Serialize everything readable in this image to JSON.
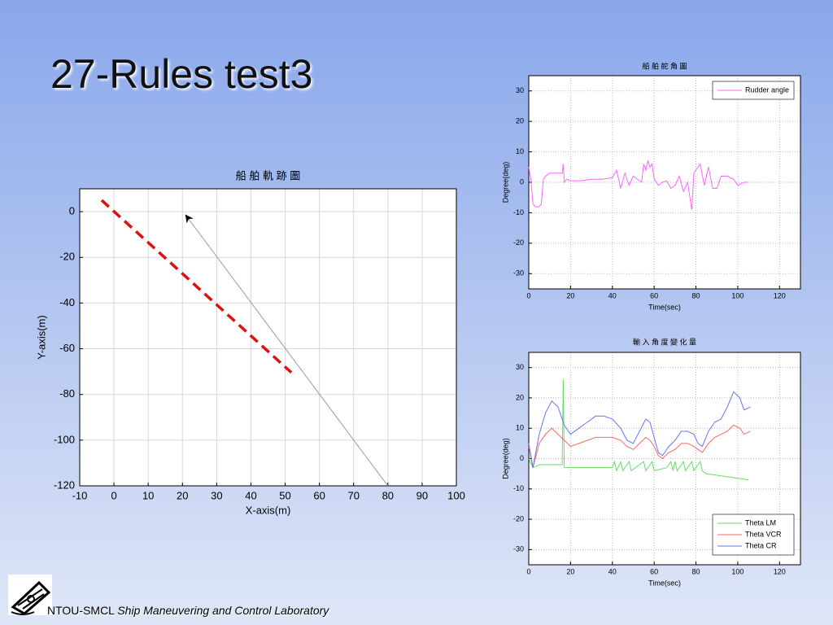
{
  "slide": {
    "title": "27-Rules test3",
    "footer": {
      "org": "NTOU-SMCL",
      "lab": "Ship Maneuvering and Control Laboratory"
    }
  },
  "chart_data": [
    {
      "type": "line",
      "title": "船 舶 軌 跡 圖",
      "x_label": "X-axis(m)",
      "y_label": "Y-axis(m)",
      "xlim": [
        -10,
        100
      ],
      "ylim": [
        -120,
        10
      ],
      "xticks": [
        -10,
        0,
        10,
        20,
        30,
        40,
        50,
        60,
        70,
        80,
        90,
        100
      ],
      "yticks": [
        -120,
        -100,
        -80,
        -60,
        -40,
        -20,
        0
      ],
      "grid": true,
      "series": [
        {
          "color": "#e01010",
          "style": "dashed",
          "x": [
            -3.6,
            51.8
          ],
          "values": [
            5,
            -70.4
          ]
        },
        {
          "color": "#999999",
          "style": "arrow",
          "x": [
            80,
            21.1
          ],
          "values": [
            -120,
            -1.8
          ]
        }
      ]
    },
    {
      "type": "line",
      "title": "船 舶 舵 角 圖",
      "x_label": "Time(sec)",
      "y_label": "Degree(deg)",
      "xlim": [
        0,
        130
      ],
      "ylim": [
        -35,
        35
      ],
      "xticks": [
        0,
        20,
        40,
        60,
        80,
        100,
        120
      ],
      "yticks": [
        -30,
        -20,
        -10,
        0,
        10,
        20,
        30
      ],
      "grid": true,
      "legend": "upper right",
      "series": [
        {
          "name": "Rudder angle",
          "color": "#ff66ff",
          "x": [
            0,
            1,
            2,
            3,
            4,
            5,
            6,
            7,
            8,
            10,
            12,
            14,
            16,
            16.5,
            17,
            18,
            20,
            25,
            30,
            35,
            40,
            42,
            44,
            46,
            48,
            50,
            52,
            54,
            55,
            56,
            57,
            58,
            59,
            60,
            62,
            64,
            66,
            68,
            70,
            72,
            74,
            76,
            78,
            79,
            80,
            82,
            84,
            86,
            88,
            90,
            92,
            95,
            98,
            100,
            103,
            105
          ],
          "values": [
            5,
            1,
            -7,
            -8,
            -8,
            -8,
            -7,
            1,
            2,
            3,
            3,
            3,
            3,
            6,
            0,
            1,
            0.5,
            0.5,
            1,
            1,
            1.5,
            4,
            -2,
            3,
            -1,
            2,
            1,
            0,
            6,
            4,
            7,
            5,
            6,
            1,
            -1,
            0,
            0.5,
            -2,
            -1,
            2,
            -3,
            0,
            -9,
            3,
            4,
            6,
            -1,
            5,
            -2,
            -2,
            2,
            2,
            1,
            -1,
            0,
            0
          ]
        }
      ]
    },
    {
      "type": "line",
      "title": "輸 入 角 度 變 化 量",
      "x_label": "Time(sec)",
      "y_label": "Degree(deg)",
      "xlim": [
        0,
        130
      ],
      "ylim": [
        -35,
        35
      ],
      "xticks": [
        0,
        20,
        40,
        60,
        80,
        100,
        120
      ],
      "yticks": [
        -30,
        -20,
        -10,
        0,
        10,
        20,
        30
      ],
      "grid": true,
      "legend": "lower right",
      "series": [
        {
          "name": "Theta LM",
          "color": "#66dd66",
          "x": [
            0,
            2,
            5,
            16,
            16.5,
            17,
            40,
            41,
            42,
            44,
            45,
            48,
            49,
            55,
            56,
            59,
            60,
            66,
            68,
            69,
            70,
            71,
            74,
            75,
            78,
            79,
            82,
            83,
            85,
            95,
            105
          ],
          "values": [
            0,
            -3,
            -2,
            -2,
            26,
            -3,
            -3,
            -1,
            -4,
            -1,
            -4,
            -1,
            -4,
            -1,
            -4,
            -1,
            -4,
            -3,
            -1,
            -4,
            -1,
            -4,
            -1,
            -4,
            -1,
            -4,
            -1,
            -4,
            -5,
            -6,
            -7
          ]
        },
        {
          "name": "Theta VCR",
          "color": "#ff6666",
          "x": [
            0,
            2,
            5,
            8,
            11,
            14,
            17,
            20,
            24,
            28,
            32,
            36,
            40,
            44,
            47,
            50,
            53,
            56,
            58,
            60,
            62,
            64,
            67,
            70,
            73,
            76,
            79,
            81,
            83,
            86,
            89,
            92,
            95,
            98,
            101,
            103,
            106
          ],
          "values": [
            4,
            -3,
            5,
            8,
            10,
            8,
            6,
            4,
            5,
            6,
            7,
            7,
            7,
            6,
            4,
            3,
            5,
            7,
            6,
            4,
            1,
            0,
            2,
            3,
            5,
            5,
            4,
            3,
            2,
            5,
            7,
            8,
            9,
            11,
            10,
            8,
            9
          ]
        },
        {
          "name": "Theta CR",
          "color": "#6677ee",
          "x": [
            0,
            2,
            5,
            8,
            11,
            14,
            17,
            20,
            24,
            28,
            32,
            36,
            40,
            44,
            47,
            50,
            53,
            56,
            58,
            60,
            62,
            64,
            67,
            70,
            73,
            76,
            79,
            81,
            83,
            86,
            89,
            92,
            95,
            98,
            101,
            103,
            106
          ],
          "values": [
            5,
            -3,
            8,
            15,
            19,
            17,
            11,
            8,
            10,
            12,
            14,
            14,
            13,
            10,
            6,
            5,
            9,
            13,
            12,
            7,
            2,
            1,
            4,
            6,
            9,
            9,
            8,
            5,
            4,
            9,
            12,
            13,
            17,
            22,
            20,
            16,
            17
          ]
        }
      ]
    }
  ]
}
